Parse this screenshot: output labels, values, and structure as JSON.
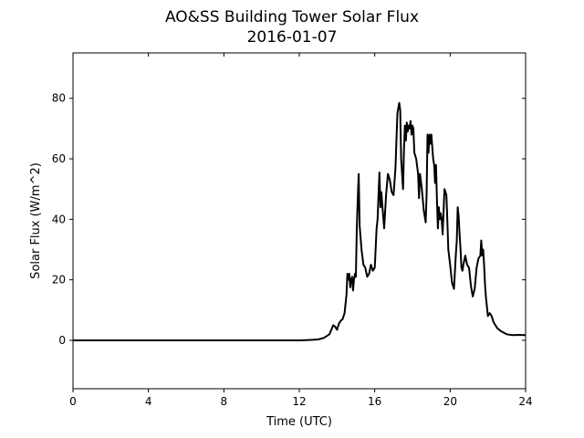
{
  "chart_data": {
    "type": "line",
    "title": "AO&SS Building Tower Solar Flux",
    "subtitle": "2016-01-07",
    "xlabel": "Time (UTC)",
    "ylabel": "Solar Flux (W/m^2)",
    "xlim": [
      0,
      24
    ],
    "ylim": [
      -16,
      95
    ],
    "x_ticks": [
      0,
      4,
      8,
      12,
      16,
      20,
      24
    ],
    "y_ticks": [
      0,
      20,
      40,
      60,
      80
    ],
    "grid": false,
    "legend": "none",
    "series": [
      {
        "color": "#000000",
        "x": [
          0,
          12.0,
          12.5,
          13.0,
          13.3,
          13.6,
          13.7,
          13.8,
          13.9,
          14.0,
          14.1,
          14.2,
          14.3,
          14.4,
          14.5,
          14.55,
          14.6,
          14.65,
          14.7,
          14.75,
          14.8,
          14.85,
          14.9,
          14.95,
          15.0,
          15.05,
          15.1,
          15.15,
          15.2,
          15.3,
          15.4,
          15.5,
          15.6,
          15.7,
          15.8,
          15.9,
          16.0,
          16.1,
          16.15,
          16.2,
          16.25,
          16.3,
          16.35,
          16.4,
          16.5,
          16.6,
          16.7,
          16.8,
          16.9,
          17.0,
          17.1,
          17.2,
          17.3,
          17.35,
          17.4,
          17.5,
          17.55,
          17.6,
          17.65,
          17.7,
          17.75,
          17.8,
          17.85,
          17.9,
          17.95,
          18.0,
          18.05,
          18.1,
          18.2,
          18.3,
          18.35,
          18.4,
          18.5,
          18.6,
          18.7,
          18.75,
          18.8,
          18.85,
          18.9,
          18.95,
          19.0,
          19.05,
          19.1,
          19.15,
          19.2,
          19.25,
          19.3,
          19.35,
          19.4,
          19.45,
          19.5,
          19.55,
          19.6,
          19.7,
          19.8,
          19.85,
          19.9,
          20.0,
          20.1,
          20.2,
          20.3,
          20.35,
          20.4,
          20.45,
          20.5,
          20.55,
          20.6,
          20.65,
          20.7,
          20.8,
          20.9,
          21.0,
          21.1,
          21.2,
          21.3,
          21.4,
          21.5,
          21.6,
          21.65,
          21.7,
          21.75,
          21.8,
          21.85,
          21.9,
          22.0,
          22.1,
          22.2,
          22.3,
          22.5,
          22.7,
          23.0,
          23.3,
          23.6,
          24.0
        ],
        "y": [
          0.0,
          0.0,
          0.1,
          0.3,
          0.8,
          2.0,
          3.5,
          5.0,
          4.5,
          3.5,
          5.5,
          6.5,
          7.0,
          9.0,
          15.0,
          22.0,
          20.0,
          22.0,
          17.5,
          20.0,
          21.0,
          16.5,
          20.0,
          22.0,
          21.0,
          37.0,
          47.0,
          55.0,
          38.0,
          30.0,
          25.0,
          24.0,
          21.0,
          22.0,
          25.0,
          23.0,
          24.0,
          37.0,
          40.0,
          48.0,
          55.5,
          44.0,
          49.0,
          45.0,
          37.0,
          48.0,
          55.0,
          53.0,
          49.0,
          48.0,
          57.0,
          75.0,
          78.5,
          76.0,
          60.0,
          50.0,
          63.0,
          71.0,
          66.0,
          72.0,
          69.0,
          71.0,
          70.0,
          72.5,
          68.0,
          71.0,
          70.0,
          62.0,
          60.0,
          55.0,
          47.0,
          55.0,
          50.0,
          43.0,
          39.0,
          48.0,
          68.0,
          62.0,
          68.0,
          65.0,
          68.0,
          64.0,
          60.0,
          58.0,
          52.0,
          58.0,
          46.0,
          37.0,
          44.0,
          40.0,
          42.0,
          40.0,
          35.0,
          50.0,
          48.0,
          40.0,
          30.0,
          25.0,
          19.0,
          17.0,
          28.0,
          33.0,
          44.0,
          41.0,
          35.0,
          30.0,
          24.0,
          23.0,
          25.0,
          28.0,
          25.0,
          24.0,
          18.0,
          14.5,
          17.0,
          24.0,
          27.0,
          28.0,
          33.0,
          28.0,
          30.0,
          25.0,
          18.0,
          14.0,
          8.0,
          9.0,
          8.0,
          6.0,
          4.0,
          3.0,
          2.0,
          1.7,
          1.8,
          1.7
        ]
      }
    ]
  }
}
